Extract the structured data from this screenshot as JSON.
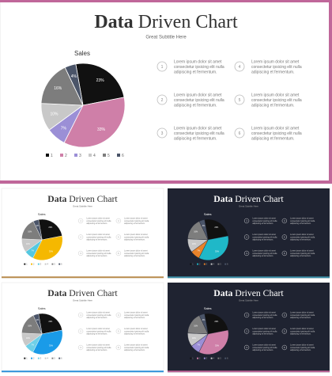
{
  "slides": [
    {
      "title_bold": "Data",
      "title_rest": "Driven Chart",
      "subtitle": "Great Subtitle Here",
      "theme": "light",
      "accent": "#c0679a",
      "items": [
        {
          "number": "1",
          "text": [
            "Lorem ipsum dolor sit amet",
            "consectetur ipsicing elit nulla",
            "adipiscing et fermentum."
          ]
        },
        {
          "number": "2",
          "text": [
            "Lorem ipsum dolor sit amet",
            "consectetur ipsicing elit nulla",
            "adipiscing et fermentum."
          ]
        },
        {
          "number": "3",
          "text": [
            "Lorem ipsum dolor sit amet",
            "consectetur ipsicing elit nulla",
            "adipiscing et fermentum."
          ]
        },
        {
          "number": "4",
          "text": [
            "Lorem ipsum dolor sit amet",
            "consectetur ipsicing elit nulla",
            "adipiscing et fermentum."
          ]
        },
        {
          "number": "5",
          "text": [
            "Lorem ipsum dolor sit amet",
            "consectetur ipsicing elit nulla",
            "adipiscing et fermentum."
          ]
        },
        {
          "number": "6",
          "text": [
            "Lorem ipsum dolor sit amet",
            "consectetur ipsicing elit nulla",
            "adipiscing et fermentum."
          ]
        }
      ]
    },
    {
      "title_bold": "Data",
      "title_rest": "Driven Chart",
      "subtitle": "Great Subtitle Here",
      "theme": "light",
      "accent": "#b88a4a",
      "items": [
        {
          "number": "1",
          "text": [
            "Lorem ipsum dolor sit amet",
            "consectetur ipsicing elit nulla",
            "adipiscing et fermentum."
          ]
        },
        {
          "number": "2",
          "text": [
            "Lorem ipsum dolor sit amet",
            "consectetur ipsicing elit nulla",
            "adipiscing et fermentum."
          ]
        },
        {
          "number": "3",
          "text": [
            "Lorem ipsum dolor sit amet",
            "consectetur ipsicing elit nulla",
            "adipiscing et fermentum."
          ]
        },
        {
          "number": "4",
          "text": [
            "Lorem ipsum dolor sit amet",
            "consectetur ipsicing elit nulla",
            "adipiscing et fermentum."
          ]
        },
        {
          "number": "5",
          "text": [
            "Lorem ipsum dolor sit amet",
            "consectetur ipsicing elit nulla",
            "adipiscing et fermentum."
          ]
        },
        {
          "number": "6",
          "text": [
            "Lorem ipsum dolor sit amet",
            "consectetur ipsicing elit nulla",
            "adipiscing et fermentum."
          ]
        }
      ]
    },
    {
      "title_bold": "Data",
      "title_rest": "Driven Chart",
      "subtitle": "Great Subtitle Here",
      "theme": "dark",
      "accent": "#3a8fa8",
      "items": [
        {
          "number": "1",
          "text": [
            "Lorem ipsum dolor sit amet",
            "consectetur ipsicing elit nulla",
            "adipiscing et fermentum."
          ]
        },
        {
          "number": "2",
          "text": [
            "Lorem ipsum dolor sit amet",
            "consectetur ipsicing elit nulla",
            "adipiscing et fermentum."
          ]
        },
        {
          "number": "3",
          "text": [
            "Lorem ipsum dolor sit amet",
            "consectetur ipsicing elit nulla",
            "adipiscing et fermentum."
          ]
        },
        {
          "number": "4",
          "text": [
            "Lorem ipsum dolor sit amet",
            "consectetur ipsicing elit nulla",
            "adipiscing et fermentum."
          ]
        },
        {
          "number": "5",
          "text": [
            "Lorem ipsum dolor sit amet",
            "consectetur ipsicing elit nulla",
            "adipiscing et fermentum."
          ]
        },
        {
          "number": "6",
          "text": [
            "Lorem ipsum dolor sit amet",
            "consectetur ipsicing elit nulla",
            "adipiscing et fermentum."
          ]
        }
      ]
    },
    {
      "title_bold": "Data",
      "title_rest": "Driven Chart",
      "subtitle": "Great Subtitle Here",
      "theme": "light",
      "accent": "#2a8fd8",
      "items": [
        {
          "number": "1",
          "text": [
            "Lorem ipsum dolor sit amet",
            "consectetur ipsicing elit nulla",
            "adipiscing et fermentum."
          ]
        },
        {
          "number": "2",
          "text": [
            "Lorem ipsum dolor sit amet",
            "consectetur ipsicing elit nulla",
            "adipiscing et fermentum."
          ]
        },
        {
          "number": "3",
          "text": [
            "Lorem ipsum dolor sit amet",
            "consectetur ipsicing elit nulla",
            "adipiscing et fermentum."
          ]
        },
        {
          "number": "4",
          "text": [
            "Lorem ipsum dolor sit amet",
            "consectetur ipsicing elit nulla",
            "adipiscing et fermentum."
          ]
        },
        {
          "number": "5",
          "text": [
            "Lorem ipsum dolor sit amet",
            "consectetur ipsicing elit nulla",
            "adipiscing et fermentum."
          ]
        },
        {
          "number": "6",
          "text": [
            "Lorem ipsum dolor sit amet",
            "consectetur ipsicing elit nulla",
            "adipiscing et fermentum."
          ]
        }
      ]
    },
    {
      "title_bold": "Data",
      "title_rest": "Driven Chart",
      "subtitle": "Great Subtitle Here",
      "theme": "dark",
      "accent": "#c0679a",
      "items": [
        {
          "number": "1",
          "text": [
            "Lorem ipsum dolor sit amet",
            "consectetur ipsicing elit nulla",
            "adipiscing et fermentum."
          ]
        },
        {
          "number": "2",
          "text": [
            "Lorem ipsum dolor sit amet",
            "consectetur ipsicing elit nulla",
            "adipiscing et fermentum."
          ]
        },
        {
          "number": "3",
          "text": [
            "Lorem ipsum dolor sit amet",
            "consectetur ipsicing elit nulla",
            "adipiscing et fermentum."
          ]
        },
        {
          "number": "4",
          "text": [
            "Lorem ipsum dolor sit amet",
            "consectetur ipsicing elit nulla",
            "adipiscing et fermentum."
          ]
        },
        {
          "number": "5",
          "text": [
            "Lorem ipsum dolor sit amet",
            "consectetur ipsicing elit nulla",
            "adipiscing et fermentum."
          ]
        },
        {
          "number": "6",
          "text": [
            "Lorem ipsum dolor sit amet",
            "consectetur ipsicing elit nulla",
            "adipiscing et fermentum."
          ]
        }
      ]
    }
  ],
  "chart_data": [
    {
      "type": "pie",
      "title": "Sales",
      "categories": [
        "1",
        "2",
        "3",
        "4",
        "5",
        "6"
      ],
      "values": [
        23,
        33,
        7,
        10,
        16,
        4
      ],
      "value_labels": [
        "23%",
        "33%",
        "7%",
        "10%",
        "16%",
        "4%"
      ],
      "colors": [
        "#111111",
        "#cf7fa8",
        "#9b8fd6",
        "#c8c8c8",
        "#7d7d7d",
        "#4a5468"
      ]
    },
    {
      "type": "pie",
      "title": "Sales",
      "categories": [
        "1",
        "2",
        "3",
        "4",
        "5",
        "6"
      ],
      "values": [
        23,
        33,
        7,
        10,
        16,
        4
      ],
      "value_labels": [
        "23%",
        "33%",
        "7%",
        "10%",
        "16%",
        "4%"
      ],
      "colors": [
        "#111111",
        "#f5b800",
        "#55c8e0",
        "#c8c8c8",
        "#7d7d7d",
        "#4a5468"
      ]
    },
    {
      "type": "pie",
      "title": "Sales",
      "categories": [
        "1",
        "2",
        "3",
        "4",
        "5",
        "6"
      ],
      "values": [
        23,
        33,
        7,
        10,
        16,
        4
      ],
      "value_labels": [
        "23%",
        "33%",
        "7%",
        "10%",
        "16%",
        "4%"
      ],
      "colors": [
        "#111111",
        "#1fb8c8",
        "#e8832a",
        "#c8c8c8",
        "#7d7d7d",
        "#4a5468"
      ]
    },
    {
      "type": "pie",
      "title": "Sales",
      "categories": [
        "1",
        "2",
        "3",
        "4",
        "5",
        "6"
      ],
      "values": [
        23,
        33,
        7,
        10,
        16,
        4
      ],
      "value_labels": [
        "23%",
        "33%",
        "7%",
        "10%",
        "16%",
        "4%"
      ],
      "colors": [
        "#111111",
        "#1a9be8",
        "#6fd0e8",
        "#c8c8c8",
        "#7d7d7d",
        "#4a5468"
      ]
    },
    {
      "type": "pie",
      "title": "Sales",
      "categories": [
        "1",
        "2",
        "3",
        "4",
        "5",
        "6"
      ],
      "values": [
        23,
        33,
        7,
        10,
        16,
        4
      ],
      "value_labels": [
        "23%",
        "33%",
        "7%",
        "10%",
        "16%",
        "4%"
      ],
      "colors": [
        "#111111",
        "#cf7fa8",
        "#9b8fd6",
        "#c8c8c8",
        "#7d7d7d",
        "#4a5468"
      ]
    }
  ]
}
